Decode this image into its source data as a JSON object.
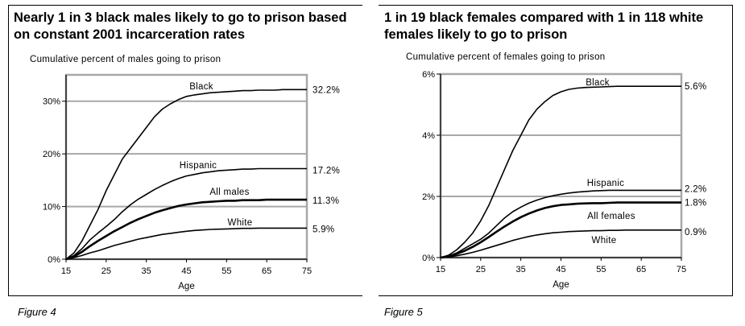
{
  "figures": [
    {
      "title": "Nearly 1 in 3 black males likely to go to prison based on constant 2001 incarceration rates",
      "caption": "Figure 4"
    },
    {
      "title": "1 in 19 black females compared with 1 in 118 white females likely to go to prison",
      "caption": "Figure 5"
    }
  ],
  "chart_data": [
    {
      "type": "line",
      "title": "Nearly 1 in 3 black males likely to go to prison based on constant 2001 incarceration rates",
      "ylabel": "Cumulative percent of males going to prison",
      "xlabel": "Age",
      "x": [
        15,
        17,
        19,
        21,
        23,
        25,
        27,
        29,
        31,
        33,
        35,
        37,
        39,
        41,
        43,
        45,
        47,
        49,
        51,
        53,
        55,
        57,
        59,
        61,
        63,
        65,
        67,
        69,
        71,
        73,
        75
      ],
      "xticks": [
        15,
        25,
        35,
        45,
        55,
        65,
        75
      ],
      "xtick_labels": [
        "15",
        "25",
        "35",
        "45",
        "55",
        "65",
        "75"
      ],
      "yticks": [
        0,
        10,
        20,
        30
      ],
      "ytick_labels": [
        "0%",
        "10%",
        "20%",
        "30%"
      ],
      "xlim": [
        15,
        75
      ],
      "ylim": [
        0,
        35
      ],
      "series": [
        {
          "name": "Black",
          "end_label": "32.2%",
          "weight": "normal",
          "values": [
            0,
            1.2,
            3.5,
            6.5,
            9.5,
            13,
            16,
            19,
            21,
            23,
            25,
            27,
            28.5,
            29.5,
            30.3,
            30.9,
            31.2,
            31.4,
            31.6,
            31.7,
            31.8,
            31.9,
            32,
            32,
            32.1,
            32.1,
            32.1,
            32.2,
            32.2,
            32.2,
            32.2
          ]
        },
        {
          "name": "Hispanic",
          "end_label": "17.2%",
          "weight": "normal",
          "values": [
            0,
            0.7,
            2,
            3.7,
            5,
            6.2,
            7.5,
            9,
            10.3,
            11.4,
            12.3,
            13.2,
            14,
            14.7,
            15.3,
            15.8,
            16.1,
            16.4,
            16.6,
            16.8,
            16.9,
            17,
            17.1,
            17.1,
            17.2,
            17.2,
            17.2,
            17.2,
            17.2,
            17.2,
            17.2
          ]
        },
        {
          "name": "All males",
          "end_label": "11.3%",
          "weight": "bold",
          "values": [
            0,
            0.5,
            1.4,
            2.5,
            3.5,
            4.4,
            5.3,
            6.1,
            6.9,
            7.6,
            8.2,
            8.8,
            9.3,
            9.7,
            10.1,
            10.4,
            10.6,
            10.8,
            10.9,
            11,
            11.1,
            11.1,
            11.2,
            11.2,
            11.2,
            11.3,
            11.3,
            11.3,
            11.3,
            11.3,
            11.3
          ]
        },
        {
          "name": "White",
          "end_label": "5.9%",
          "weight": "normal",
          "values": [
            0,
            0.3,
            0.7,
            1.2,
            1.6,
            2.1,
            2.6,
            3.0,
            3.4,
            3.8,
            4.1,
            4.4,
            4.7,
            4.9,
            5.1,
            5.3,
            5.45,
            5.55,
            5.65,
            5.7,
            5.75,
            5.8,
            5.85,
            5.85,
            5.9,
            5.9,
            5.9,
            5.9,
            5.9,
            5.9,
            5.9
          ]
        }
      ]
    },
    {
      "type": "line",
      "title": "1 in 19 black females compared with 1 in 118 white females likely to go to prison",
      "ylabel": "Cumulative percent of females going to prison",
      "xlabel": "Age",
      "x": [
        15,
        17,
        19,
        21,
        23,
        25,
        27,
        29,
        31,
        33,
        35,
        37,
        39,
        41,
        43,
        45,
        47,
        49,
        51,
        53,
        55,
        57,
        59,
        61,
        63,
        65,
        67,
        69,
        71,
        73,
        75
      ],
      "xticks": [
        15,
        25,
        35,
        45,
        55,
        65,
        75
      ],
      "xtick_labels": [
        "15",
        "25",
        "35",
        "45",
        "55",
        "65",
        "75"
      ],
      "yticks": [
        0,
        2,
        4,
        6
      ],
      "ytick_labels": [
        "0%",
        "2%",
        "4%",
        "6%"
      ],
      "xlim": [
        15,
        75
      ],
      "ylim": [
        0,
        6
      ],
      "series": [
        {
          "name": "Black",
          "end_label": "5.6%",
          "weight": "normal",
          "values": [
            0,
            0.08,
            0.25,
            0.5,
            0.8,
            1.2,
            1.7,
            2.3,
            2.9,
            3.5,
            4.0,
            4.5,
            4.85,
            5.1,
            5.3,
            5.42,
            5.5,
            5.54,
            5.56,
            5.57,
            5.58,
            5.59,
            5.6,
            5.6,
            5.6,
            5.6,
            5.6,
            5.6,
            5.6,
            5.6,
            5.6
          ]
        },
        {
          "name": "Hispanic",
          "end_label": "2.2%",
          "weight": "normal",
          "values": [
            0,
            0.05,
            0.15,
            0.3,
            0.45,
            0.6,
            0.8,
            1.05,
            1.3,
            1.5,
            1.65,
            1.78,
            1.88,
            1.96,
            2.02,
            2.07,
            2.11,
            2.14,
            2.16,
            2.18,
            2.19,
            2.2,
            2.2,
            2.2,
            2.2,
            2.2,
            2.2,
            2.2,
            2.2,
            2.2,
            2.2
          ]
        },
        {
          "name": "All females",
          "end_label": "1.8%",
          "weight": "bold",
          "values": [
            0,
            0.04,
            0.12,
            0.22,
            0.35,
            0.5,
            0.67,
            0.85,
            1.02,
            1.18,
            1.32,
            1.44,
            1.54,
            1.62,
            1.68,
            1.72,
            1.74,
            1.76,
            1.77,
            1.78,
            1.78,
            1.79,
            1.8,
            1.8,
            1.8,
            1.8,
            1.8,
            1.8,
            1.8,
            1.8,
            1.8
          ]
        },
        {
          "name": "White",
          "end_label": "0.9%",
          "weight": "normal",
          "values": [
            0,
            0.02,
            0.06,
            0.11,
            0.17,
            0.24,
            0.32,
            0.4,
            0.48,
            0.56,
            0.63,
            0.69,
            0.74,
            0.78,
            0.81,
            0.83,
            0.85,
            0.86,
            0.87,
            0.88,
            0.88,
            0.89,
            0.89,
            0.9,
            0.9,
            0.9,
            0.9,
            0.9,
            0.9,
            0.9,
            0.9
          ]
        }
      ]
    }
  ]
}
